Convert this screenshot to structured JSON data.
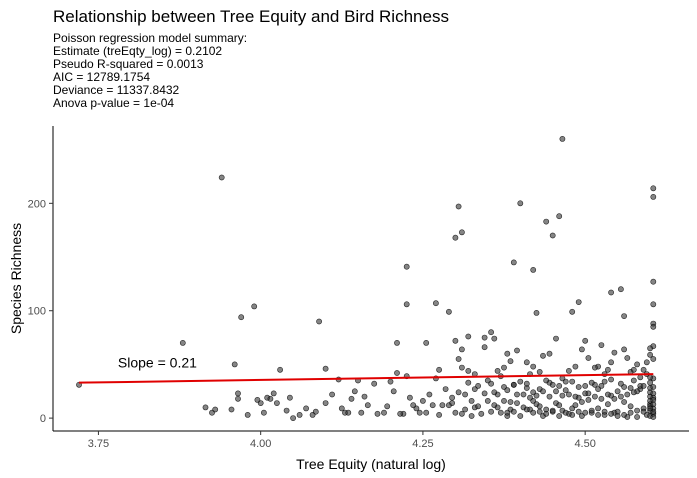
{
  "chart_data": {
    "type": "scatter",
    "title": "Relationship between Tree Equity and Bird Richness",
    "subtitle_lines": [
      "Poisson regression model summary:",
      "Estimate (treEqty_log) = 0.2102",
      "Pseudo R-squared = 0.0013",
      "AIC = 12789.1754",
      "Deviance = 11337.8432",
      "Anova p-value = 1e-04"
    ],
    "xlabel": "Tree Equity (natural log)",
    "ylabel": "Species Richness",
    "xlim": [
      3.68,
      4.66
    ],
    "ylim": [
      -12,
      272
    ],
    "x_ticks": [
      3.75,
      4.0,
      4.25,
      4.5
    ],
    "x_tick_labels": [
      "3.75",
      "4.00",
      "4.25",
      "4.50"
    ],
    "y_ticks": [
      0,
      100,
      200
    ],
    "y_tick_labels": [
      "0",
      "100",
      "200"
    ],
    "grid": false,
    "annotation": {
      "text": "Slope =  0.21",
      "x": 3.78,
      "y": 47
    },
    "fit_line": {
      "color": "#e00000",
      "points": [
        [
          3.72,
          33
        ],
        [
          4.605,
          41
        ]
      ]
    },
    "point_color": "#333333",
    "series": [
      {
        "points": [
          [
            3.72,
            31
          ],
          [
            3.88,
            70
          ],
          [
            3.915,
            10
          ],
          [
            3.925,
            5
          ],
          [
            3.94,
            224
          ],
          [
            3.955,
            8
          ],
          [
            3.96,
            50
          ],
          [
            3.965,
            23
          ],
          [
            3.965,
            18
          ],
          [
            3.97,
            94
          ],
          [
            3.99,
            104
          ],
          [
            4.0,
            14
          ],
          [
            4.005,
            5
          ],
          [
            4.01,
            19
          ],
          [
            4.015,
            18
          ],
          [
            4.02,
            23
          ],
          [
            4.03,
            45
          ],
          [
            4.045,
            19
          ],
          [
            4.05,
            0
          ],
          [
            4.07,
            9
          ],
          [
            4.08,
            3
          ],
          [
            4.09,
            90
          ],
          [
            4.1,
            46
          ],
          [
            4.11,
            22
          ],
          [
            4.12,
            36
          ],
          [
            4.13,
            5
          ],
          [
            4.135,
            5
          ],
          [
            4.145,
            25
          ],
          [
            4.15,
            35
          ],
          [
            4.16,
            20
          ],
          [
            4.175,
            32
          ],
          [
            4.19,
            5
          ],
          [
            4.2,
            34
          ],
          [
            4.205,
            25
          ],
          [
            4.22,
            4
          ],
          [
            4.225,
            39
          ],
          [
            4.23,
            19
          ],
          [
            4.24,
            9
          ],
          [
            4.25,
            16
          ],
          [
            4.26,
            22
          ],
          [
            4.27,
            37
          ],
          [
            4.28,
            12
          ],
          [
            4.29,
            12
          ],
          [
            4.295,
            14
          ],
          [
            4.3,
            5
          ],
          [
            4.31,
            4
          ],
          [
            4.315,
            22
          ],
          [
            4.32,
            33
          ],
          [
            4.325,
            2
          ],
          [
            4.33,
            10
          ],
          [
            4.34,
            4
          ],
          [
            4.35,
            16
          ],
          [
            4.355,
            32
          ],
          [
            4.36,
            12
          ],
          [
            4.365,
            22
          ],
          [
            4.37,
            5
          ],
          [
            4.375,
            29
          ],
          [
            4.38,
            2
          ],
          [
            4.385,
            15
          ],
          [
            4.39,
            31
          ],
          [
            4.395,
            14
          ],
          [
            4.4,
            2
          ],
          [
            4.405,
            10
          ],
          [
            4.41,
            28
          ],
          [
            4.415,
            8
          ],
          [
            4.42,
            16
          ],
          [
            4.425,
            13
          ],
          [
            4.43,
            11
          ],
          [
            4.435,
            2
          ],
          [
            4.44,
            4
          ],
          [
            4.445,
            33
          ],
          [
            4.45,
            6
          ],
          [
            4.455,
            14
          ],
          [
            4.46,
            12
          ],
          [
            4.465,
            21
          ],
          [
            4.47,
            34
          ],
          [
            4.475,
            4
          ],
          [
            4.48,
            9
          ],
          [
            4.485,
            12
          ],
          [
            4.49,
            19
          ],
          [
            4.495,
            2
          ],
          [
            4.5,
            23
          ],
          [
            4.505,
            17
          ],
          [
            4.51,
            5
          ],
          [
            4.515,
            31
          ],
          [
            4.52,
            9
          ],
          [
            4.525,
            30
          ],
          [
            4.53,
            3
          ],
          [
            4.535,
            13
          ],
          [
            4.54,
            21
          ],
          [
            4.545,
            5
          ],
          [
            4.55,
            6
          ],
          [
            4.555,
            32
          ],
          [
            4.56,
            15
          ],
          [
            4.565,
            1
          ],
          [
            4.57,
            11
          ],
          [
            4.575,
            35
          ],
          [
            4.58,
            1
          ],
          [
            4.585,
            27
          ],
          [
            4.59,
            9
          ],
          [
            4.595,
            3
          ],
          [
            4.6,
            20
          ],
          [
            4.6,
            13
          ],
          [
            4.6,
            7
          ],
          [
            4.6,
            24
          ],
          [
            4.6,
            2
          ],
          [
            4.6,
            33
          ],
          [
            4.6,
            16
          ],
          [
            4.6,
            11
          ],
          [
            4.6,
            28
          ],
          [
            4.605,
            4
          ],
          [
            4.605,
            19
          ],
          [
            4.605,
            37
          ],
          [
            4.605,
            1
          ],
          [
            4.605,
            23
          ],
          [
            4.605,
            9
          ],
          [
            4.605,
            13
          ],
          [
            4.605,
            6
          ],
          [
            4.605,
            17
          ],
          [
            4.605,
            29
          ],
          [
            4.225,
            141
          ],
          [
            4.225,
            106
          ],
          [
            4.27,
            107
          ],
          [
            4.3,
            168
          ],
          [
            4.305,
            197
          ],
          [
            4.31,
            173
          ],
          [
            4.4,
            200
          ],
          [
            4.39,
            145
          ],
          [
            4.42,
            138
          ],
          [
            4.425,
            98
          ],
          [
            4.44,
            183
          ],
          [
            4.45,
            170
          ],
          [
            4.46,
            188
          ],
          [
            4.465,
            260
          ],
          [
            4.49,
            108
          ],
          [
            4.48,
            99
          ],
          [
            4.54,
            117
          ],
          [
            4.555,
            120
          ],
          [
            4.56,
            95
          ],
          [
            4.605,
            214
          ],
          [
            4.605,
            206
          ],
          [
            4.605,
            127
          ],
          [
            4.605,
            106
          ],
          [
            4.605,
            88
          ],
          [
            4.605,
            85
          ],
          [
            4.605,
            67
          ],
          [
            4.605,
            55
          ],
          [
            4.6,
            65
          ],
          [
            4.6,
            59
          ],
          [
            4.595,
            52
          ],
          [
            4.29,
            99
          ],
          [
            4.3,
            72
          ],
          [
            4.305,
            55
          ],
          [
            4.31,
            47
          ],
          [
            4.32,
            44
          ],
          [
            4.33,
            41
          ],
          [
            4.345,
            66
          ],
          [
            4.355,
            80
          ],
          [
            4.36,
            74
          ],
          [
            4.375,
            47
          ],
          [
            4.38,
            60
          ],
          [
            4.385,
            53
          ],
          [
            4.395,
            63
          ],
          [
            4.41,
            52
          ],
          [
            4.415,
            41
          ],
          [
            4.42,
            48
          ],
          [
            4.43,
            43
          ],
          [
            4.435,
            58
          ],
          [
            4.445,
            60
          ],
          [
            4.455,
            74
          ],
          [
            4.475,
            44
          ],
          [
            4.485,
            48
          ],
          [
            4.495,
            64
          ],
          [
            4.5,
            72
          ],
          [
            4.505,
            56
          ],
          [
            4.52,
            48
          ],
          [
            4.525,
            68
          ],
          [
            4.53,
            41
          ],
          [
            4.54,
            52
          ],
          [
            4.545,
            61
          ],
          [
            4.56,
            64
          ],
          [
            4.57,
            43
          ],
          [
            4.58,
            50
          ],
          [
            4.59,
            45
          ],
          [
            4.565,
            56
          ],
          [
            4.575,
            45
          ],
          [
            4.585,
            30
          ],
          [
            4.535,
            45
          ],
          [
            4.515,
            47
          ],
          [
            4.465,
            37
          ],
          [
            4.255,
            70
          ],
          [
            4.31,
            64
          ],
          [
            4.21,
            42
          ],
          [
            4.21,
            70
          ],
          [
            4.275,
            45
          ],
          [
            4.33,
            27
          ],
          [
            4.32,
            76
          ],
          [
            4.345,
            75
          ],
          [
            4.35,
            35
          ],
          [
            4.335,
            30
          ],
          [
            4.36,
            24
          ],
          [
            4.365,
            44
          ],
          [
            4.37,
            39
          ],
          [
            4.38,
            26
          ],
          [
            4.39,
            31
          ],
          [
            4.4,
            34
          ],
          [
            4.41,
            32
          ],
          [
            4.42,
            24
          ],
          [
            4.43,
            27
          ],
          [
            4.44,
            35
          ],
          [
            4.45,
            31
          ],
          [
            4.46,
            30
          ],
          [
            4.47,
            26
          ],
          [
            4.48,
            34
          ],
          [
            4.49,
            29
          ],
          [
            4.5,
            30
          ],
          [
            4.51,
            33
          ],
          [
            4.52,
            27
          ],
          [
            4.53,
            34
          ],
          [
            4.54,
            36
          ],
          [
            4.55,
            25
          ],
          [
            4.56,
            29
          ],
          [
            4.57,
            28
          ],
          [
            4.58,
            25
          ],
          [
            4.59,
            30
          ],
          [
            4.6,
            38
          ],
          [
            4.595,
            41
          ],
          [
            4.585,
            38
          ],
          [
            4.575,
            24
          ],
          [
            4.565,
            22
          ],
          [
            4.555,
            20
          ],
          [
            4.545,
            18
          ],
          [
            4.535,
            22
          ],
          [
            4.525,
            18
          ],
          [
            4.515,
            20
          ],
          [
            4.505,
            23
          ],
          [
            4.495,
            15
          ],
          [
            4.485,
            20
          ],
          [
            4.475,
            22
          ],
          [
            4.465,
            7
          ],
          [
            4.455,
            25
          ],
          [
            4.445,
            20
          ],
          [
            4.435,
            25
          ],
          [
            4.425,
            21
          ],
          [
            4.415,
            19
          ],
          [
            4.405,
            22
          ],
          [
            4.395,
            22
          ],
          [
            4.385,
            8
          ],
          [
            4.375,
            16
          ],
          [
            4.365,
            10
          ],
          [
            4.355,
            6
          ],
          [
            4.345,
            23
          ],
          [
            4.335,
            11
          ],
          [
            4.325,
            16
          ],
          [
            4.315,
            8
          ],
          [
            4.305,
            24
          ],
          [
            4.295,
            19
          ],
          [
            4.285,
            27
          ],
          [
            4.275,
            3
          ],
          [
            4.265,
            12
          ],
          [
            4.255,
            5
          ],
          [
            4.245,
            5
          ],
          [
            4.235,
            12
          ],
          [
            4.215,
            4
          ],
          [
            4.195,
            11
          ],
          [
            4.18,
            4
          ],
          [
            4.165,
            12
          ],
          [
            4.155,
            5
          ],
          [
            4.14,
            18
          ],
          [
            4.125,
            9
          ],
          [
            4.1,
            14
          ],
          [
            4.085,
            6
          ],
          [
            4.06,
            3
          ],
          [
            4.04,
            7
          ],
          [
            4.025,
            14
          ],
          [
            3.995,
            17
          ],
          [
            3.98,
            3
          ],
          [
            3.93,
            8
          ],
          [
            4.38,
            5
          ],
          [
            4.39,
            6
          ],
          [
            4.41,
            8
          ],
          [
            4.42,
            5
          ],
          [
            4.43,
            6
          ],
          [
            4.44,
            8
          ],
          [
            4.45,
            7
          ],
          [
            4.46,
            2
          ],
          [
            4.47,
            5
          ],
          [
            4.48,
            3
          ],
          [
            4.49,
            6
          ],
          [
            4.5,
            5
          ],
          [
            4.51,
            7
          ],
          [
            4.52,
            3
          ],
          [
            4.53,
            6
          ],
          [
            4.54,
            4
          ],
          [
            4.55,
            2
          ],
          [
            4.56,
            3
          ],
          [
            4.57,
            5
          ],
          [
            4.58,
            7
          ],
          [
            4.59,
            6
          ],
          [
            4.6,
            9
          ]
        ]
      }
    ]
  }
}
